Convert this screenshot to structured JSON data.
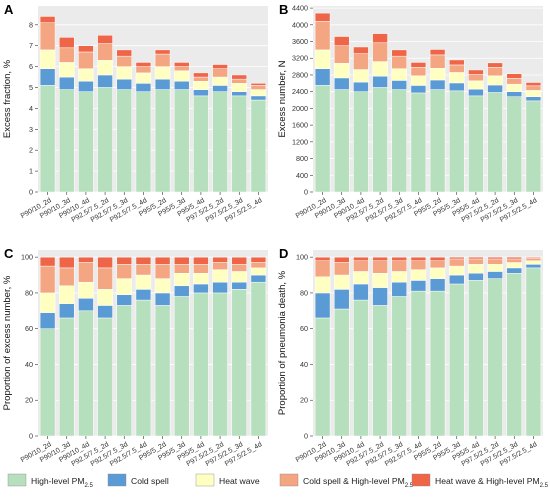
{
  "colors": {
    "panel_bg": "#ebebeb",
    "grid": "#ffffff",
    "bar_outline": "#ffffff",
    "series": [
      "#b5dfbd",
      "#5b9bd5",
      "#ffffc2",
      "#f4a582",
      "#ef6548"
    ]
  },
  "categories": [
    "P90/10_2d",
    "P90/10_3d",
    "P90/10_4d",
    "P92.5/7.5_2d",
    "P92.5/7.5_3d",
    "P92.5/7.5_4d",
    "P95/5_2d",
    "P95/5_3d",
    "P95/5_4d",
    "P97.5/2.5_2d",
    "P97.5/2.5_3d",
    "P97.5/2.5_4d"
  ],
  "legend": [
    {
      "label": "High-level PM",
      "sub": "2.5"
    },
    {
      "label": "Cold spell",
      "sub": ""
    },
    {
      "label": "Heat wave",
      "sub": ""
    },
    {
      "label": "Cold spell & High-level PM",
      "sub": "2.5"
    },
    {
      "label": "Heat wave & High-level PM",
      "sub": "2.5"
    }
  ],
  "chart_data": [
    {
      "panel": "A",
      "type": "bar",
      "stacked": true,
      "ylabel": "Excess fraction, %",
      "ylim": [
        0,
        8.9
      ],
      "yticks": [
        0,
        1,
        2,
        3,
        4,
        5,
        6,
        7,
        8
      ],
      "series": [
        {
          "name": "High-level PM2.5",
          "values": [
            5.1,
            4.9,
            4.8,
            5.0,
            4.9,
            4.8,
            4.9,
            4.9,
            4.6,
            4.8,
            4.6,
            4.4
          ]
        },
        {
          "name": "Cold spell",
          "values": [
            0.8,
            0.6,
            0.5,
            0.6,
            0.5,
            0.4,
            0.5,
            0.4,
            0.3,
            0.3,
            0.2,
            0.2
          ]
        },
        {
          "name": "Heat wave",
          "values": [
            0.9,
            0.7,
            0.6,
            0.7,
            0.6,
            0.5,
            0.6,
            0.5,
            0.4,
            0.4,
            0.4,
            0.3
          ]
        },
        {
          "name": "Cold spell & High-level PM2.5",
          "values": [
            1.3,
            0.7,
            0.8,
            0.8,
            0.5,
            0.3,
            0.6,
            0.2,
            0.2,
            0.4,
            0.2,
            0.2
          ]
        },
        {
          "name": "Heat wave & High-level PM2.5",
          "values": [
            0.3,
            0.5,
            0.3,
            0.4,
            0.3,
            0.2,
            0.2,
            0.2,
            0.2,
            0.2,
            0.2,
            0.1
          ]
        }
      ]
    },
    {
      "panel": "B",
      "type": "bar",
      "stacked": true,
      "ylabel": "Excess number, N",
      "ylim": [
        0,
        4450
      ],
      "yticks": [
        0,
        400,
        800,
        1200,
        1600,
        2000,
        2400,
        2800,
        3200,
        3600,
        4000,
        4400
      ],
      "series": [
        {
          "name": "High-level PM2.5",
          "values": [
            2550,
            2450,
            2400,
            2500,
            2450,
            2370,
            2450,
            2420,
            2300,
            2380,
            2280,
            2180
          ]
        },
        {
          "name": "Cold spell",
          "values": [
            400,
            280,
            230,
            270,
            220,
            180,
            230,
            190,
            160,
            180,
            120,
            100
          ]
        },
        {
          "name": "Heat wave",
          "values": [
            450,
            350,
            300,
            350,
            280,
            230,
            280,
            250,
            200,
            220,
            180,
            150
          ]
        },
        {
          "name": "Cold spell & High-level PM2.5",
          "values": [
            680,
            420,
            380,
            450,
            300,
            200,
            320,
            180,
            150,
            200,
            140,
            110
          ]
        },
        {
          "name": "Heat wave & High-level PM2.5",
          "values": [
            200,
            220,
            160,
            220,
            150,
            120,
            130,
            120,
            110,
            110,
            110,
            80
          ]
        }
      ]
    },
    {
      "panel": "C",
      "type": "bar",
      "stacked": true,
      "ylabel": "Proportion of excess number, %",
      "ylim": [
        0,
        104
      ],
      "yticks": [
        0,
        20,
        40,
        60,
        80,
        100
      ],
      "series": [
        {
          "name": "High-level PM2.5",
          "values": [
            60,
            66,
            70,
            66,
            73,
            76,
            73,
            78,
            80,
            80,
            82,
            86
          ]
        },
        {
          "name": "Cold spell",
          "values": [
            9,
            8,
            7,
            7,
            6,
            6,
            7,
            6,
            5,
            6,
            4,
            4
          ]
        },
        {
          "name": "Heat wave",
          "values": [
            11,
            10,
            9,
            9,
            9,
            8,
            8,
            7,
            6,
            7,
            6,
            4
          ]
        },
        {
          "name": "Cold spell & High-level PM2.5",
          "values": [
            15,
            10,
            11,
            12,
            8,
            6,
            8,
            5,
            5,
            4,
            4,
            3
          ]
        },
        {
          "name": "Heat wave & High-level PM2.5",
          "values": [
            5,
            6,
            3,
            6,
            4,
            4,
            4,
            4,
            4,
            3,
            4,
            3
          ]
        }
      ]
    },
    {
      "panel": "D",
      "type": "bar",
      "stacked": true,
      "ylabel": "Proportion of pneumonia death, %",
      "ylim": [
        0,
        104
      ],
      "yticks": [
        0,
        20,
        40,
        60,
        80,
        100
      ],
      "series": [
        {
          "name": "High-level PM2.5",
          "values": [
            66,
            71,
            76,
            73,
            78,
            81,
            81,
            85,
            87,
            88,
            91,
            94
          ]
        },
        {
          "name": "Cold spell",
          "values": [
            14,
            11,
            9,
            10,
            8,
            6,
            7,
            5,
            4,
            4,
            3,
            2
          ]
        },
        {
          "name": "Heat wave",
          "values": [
            9,
            8,
            7,
            8,
            6,
            6,
            6,
            5,
            5,
            4,
            3,
            2
          ]
        },
        {
          "name": "Cold spell & High-level PM2.5",
          "values": [
            9,
            7,
            6,
            7,
            6,
            5,
            4,
            4,
            3,
            3,
            2,
            1.5
          ]
        },
        {
          "name": "Heat wave & High-level PM2.5",
          "values": [
            2,
            3,
            2,
            2,
            2,
            2,
            2,
            1,
            1,
            1,
            1,
            0.5
          ]
        }
      ]
    }
  ]
}
